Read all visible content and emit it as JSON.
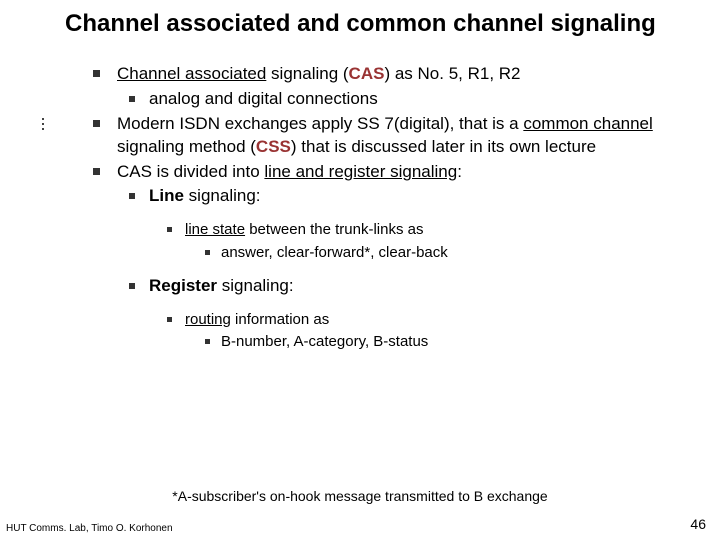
{
  "colors": {
    "background": "#ffffff",
    "text": "#000000",
    "bullet": "#333333",
    "accent": "#993333"
  },
  "typography": {
    "title_fontsize_pt": 18,
    "body_fontsize_pt": 13,
    "sub_fontsize_pt": 11,
    "footer_fontsize_pt": 8,
    "font_family": "Verdana"
  },
  "title": "Channel associated and common channel signaling",
  "items": {
    "i1_pre": "Channel associated",
    "i1_mid": " signaling (",
    "i1_acc": "CAS",
    "i1_post": ") as No. 5, R1, R2",
    "i1a": "analog and digital connections",
    "i2_pre": "Modern ISDN exchanges apply SS 7(digital), that is a ",
    "i2_u": "common channel",
    "i2_mid": " signaling method (",
    "i2_acc": "CSS",
    "i2_post": ") that is discussed later in its own lecture",
    "i3": "CAS is divided into ",
    "i3_u": "line and register signaling",
    "i3_post": ":",
    "line_b": "Line",
    "line_rest": " signaling:",
    "ls_u": "line state",
    "ls_rest": " between the trunk-links as",
    "ls_items": "answer, clear-forward*, clear-back",
    "reg_b": "Register",
    "reg_rest": " signaling:",
    "rs_u": "routing",
    "rs_rest": " information as",
    "rs_items": "B-number, A-category, B-status"
  },
  "footnote": "*A-subscriber's on-hook message transmitted to B exchange",
  "footer_left": "HUT Comms. Lab, Timo O. Korhonen",
  "page_number": "46"
}
